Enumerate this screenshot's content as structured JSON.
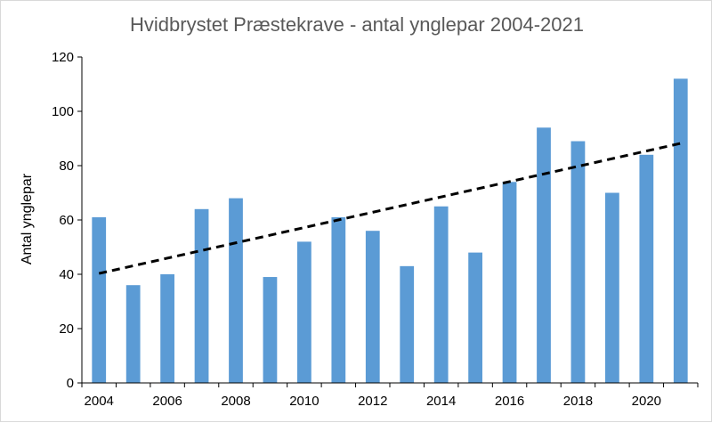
{
  "chart_data": {
    "type": "bar",
    "title": "Hvidbrystet Præstekrave - antal ynglepar 2004-2021",
    "xlabel": "",
    "ylabel": "Antal ynglepar",
    "categories": [
      2004,
      2005,
      2006,
      2007,
      2008,
      2009,
      2010,
      2011,
      2012,
      2013,
      2014,
      2015,
      2016,
      2017,
      2018,
      2019,
      2020,
      2021
    ],
    "values": [
      61,
      36,
      40,
      64,
      68,
      39,
      52,
      61,
      56,
      43,
      65,
      48,
      74,
      94,
      89,
      70,
      84,
      112
    ],
    "x_tick_labels": [
      "2004",
      "2006",
      "2008",
      "2010",
      "2012",
      "2014",
      "2016",
      "2018",
      "2020"
    ],
    "y_ticks": [
      0,
      20,
      40,
      60,
      80,
      100,
      120
    ],
    "ylim": [
      0,
      120
    ],
    "trendline": {
      "type": "linear",
      "start_value": 40.3,
      "end_value": 88.2,
      "style": "dashed"
    },
    "colors": {
      "bar": "#5b9bd5",
      "trend": "#000000",
      "axis": "#000000"
    },
    "legend": "none",
    "grid": false
  }
}
